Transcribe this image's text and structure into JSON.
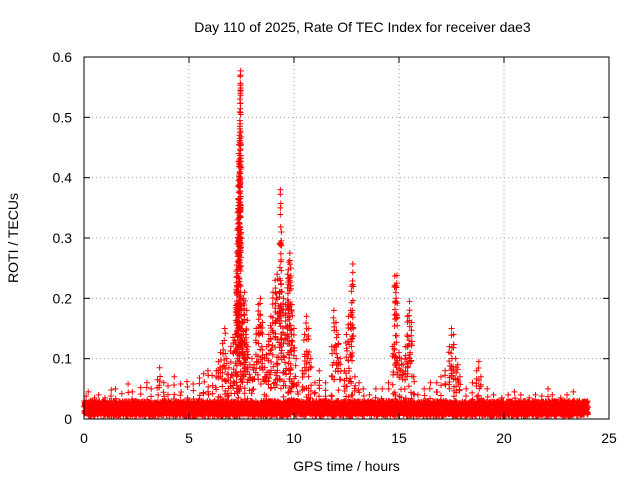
{
  "chart_data": {
    "type": "scatter",
    "title": "Day 110 of 2025, Rate Of TEC Index for receiver dae3",
    "xlabel": "GPS time / hours",
    "ylabel": "ROTI / TECUs",
    "xlim": [
      0,
      25
    ],
    "ylim": [
      0,
      0.6
    ],
    "xticks": [
      "0",
      "5",
      "10",
      "15",
      "20",
      "25"
    ],
    "yticks": [
      "0",
      "0.1",
      "0.2",
      "0.3",
      "0.4",
      "0.5",
      "0.6"
    ],
    "grid": true,
    "marker": "+",
    "color": "#ff0000",
    "background_band": {
      "x_range": [
        0,
        24
      ],
      "y_range": [
        0.005,
        0.03
      ],
      "note_points_per_hour": 60
    },
    "series": [
      {
        "points": [
          [
            0.05,
            0.025
          ],
          [
            0.1,
            0.038
          ],
          [
            0.2,
            0.045
          ],
          [
            0.3,
            0.03
          ],
          [
            0.5,
            0.035
          ],
          [
            0.7,
            0.04
          ],
          [
            1.0,
            0.035
          ],
          [
            1.3,
            0.048
          ],
          [
            1.5,
            0.05
          ],
          [
            1.8,
            0.042
          ],
          [
            2.1,
            0.058
          ],
          [
            2.3,
            0.045
          ],
          [
            2.7,
            0.052
          ],
          [
            3.0,
            0.06
          ],
          [
            3.2,
            0.05
          ],
          [
            3.5,
            0.065
          ],
          [
            3.6,
            0.085
          ],
          [
            3.8,
            0.06
          ],
          [
            4.0,
            0.055
          ],
          [
            4.3,
            0.07
          ],
          [
            4.6,
            0.058
          ],
          [
            4.9,
            0.062
          ],
          [
            5.2,
            0.058
          ],
          [
            5.5,
            0.068
          ],
          [
            5.7,
            0.075
          ],
          [
            5.9,
            0.08
          ],
          [
            6.1,
            0.072
          ],
          [
            6.3,
            0.08
          ],
          [
            6.4,
            0.095
          ],
          [
            6.5,
            0.11
          ],
          [
            6.6,
            0.125
          ],
          [
            6.7,
            0.15
          ],
          [
            6.8,
            0.1
          ],
          [
            6.9,
            0.085
          ],
          [
            7.0,
            0.12
          ],
          [
            7.1,
            0.135
          ],
          [
            7.2,
            0.14
          ],
          [
            7.25,
            0.21
          ],
          [
            7.28,
            0.255
          ],
          [
            7.3,
            0.29
          ],
          [
            7.32,
            0.33
          ],
          [
            7.34,
            0.365
          ],
          [
            7.36,
            0.395
          ],
          [
            7.38,
            0.44
          ],
          [
            7.4,
            0.47
          ],
          [
            7.42,
            0.485
          ],
          [
            7.44,
            0.54
          ],
          [
            7.45,
            0.57
          ],
          [
            7.46,
            0.577
          ],
          [
            7.5,
            0.19
          ],
          [
            7.55,
            0.16
          ],
          [
            7.6,
            0.2
          ],
          [
            7.65,
            0.21
          ],
          [
            7.7,
            0.14
          ],
          [
            7.75,
            0.18
          ],
          [
            7.8,
            0.12
          ],
          [
            7.9,
            0.09
          ],
          [
            8.0,
            0.1
          ],
          [
            8.1,
            0.09
          ],
          [
            8.2,
            0.15
          ],
          [
            8.3,
            0.19
          ],
          [
            8.4,
            0.2
          ],
          [
            8.5,
            0.16
          ],
          [
            8.6,
            0.1
          ],
          [
            8.7,
            0.12
          ],
          [
            8.8,
            0.14
          ],
          [
            8.9,
            0.17
          ],
          [
            9.0,
            0.21
          ],
          [
            9.1,
            0.23
          ],
          [
            9.2,
            0.24
          ],
          [
            9.3,
            0.21
          ],
          [
            9.35,
            0.38
          ],
          [
            9.4,
            0.31
          ],
          [
            9.5,
            0.2
          ],
          [
            9.6,
            0.19
          ],
          [
            9.7,
            0.24
          ],
          [
            9.75,
            0.26
          ],
          [
            9.8,
            0.275
          ],
          [
            9.85,
            0.25
          ],
          [
            9.9,
            0.19
          ],
          [
            10.0,
            0.15
          ],
          [
            10.1,
            0.1
          ],
          [
            10.2,
            0.06
          ],
          [
            10.4,
            0.08
          ],
          [
            10.5,
            0.14
          ],
          [
            10.6,
            0.17
          ],
          [
            10.7,
            0.15
          ],
          [
            10.8,
            0.1
          ],
          [
            11.0,
            0.06
          ],
          [
            11.2,
            0.08
          ],
          [
            11.5,
            0.06
          ],
          [
            11.8,
            0.12
          ],
          [
            11.9,
            0.18
          ],
          [
            12.0,
            0.16
          ],
          [
            12.1,
            0.14
          ],
          [
            12.2,
            0.1
          ],
          [
            12.4,
            0.08
          ],
          [
            12.5,
            0.14
          ],
          [
            12.6,
            0.17
          ],
          [
            12.7,
            0.18
          ],
          [
            12.75,
            0.22
          ],
          [
            12.8,
            0.257
          ],
          [
            12.9,
            0.07
          ],
          [
            13.1,
            0.06
          ],
          [
            13.3,
            0.05
          ],
          [
            13.6,
            0.04
          ],
          [
            13.9,
            0.05
          ],
          [
            14.2,
            0.05
          ],
          [
            14.5,
            0.06
          ],
          [
            14.7,
            0.12
          ],
          [
            14.8,
            0.237
          ],
          [
            14.85,
            0.22
          ],
          [
            14.9,
            0.238
          ],
          [
            15.0,
            0.11
          ],
          [
            15.1,
            0.1
          ],
          [
            15.2,
            0.09
          ],
          [
            15.3,
            0.12
          ],
          [
            15.4,
            0.17
          ],
          [
            15.5,
            0.195
          ],
          [
            15.6,
            0.16
          ],
          [
            15.7,
            0.07
          ],
          [
            15.9,
            0.04
          ],
          [
            16.2,
            0.05
          ],
          [
            16.5,
            0.06
          ],
          [
            16.8,
            0.06
          ],
          [
            17.0,
            0.07
          ],
          [
            17.2,
            0.08
          ],
          [
            17.4,
            0.12
          ],
          [
            17.5,
            0.15
          ],
          [
            17.6,
            0.14
          ],
          [
            17.7,
            0.1
          ],
          [
            17.8,
            0.09
          ],
          [
            17.9,
            0.07
          ],
          [
            18.2,
            0.05
          ],
          [
            18.5,
            0.06
          ],
          [
            18.7,
            0.08
          ],
          [
            18.8,
            0.095
          ],
          [
            18.9,
            0.07
          ],
          [
            19.2,
            0.05
          ],
          [
            19.5,
            0.04
          ],
          [
            19.9,
            0.035
          ],
          [
            20.2,
            0.04
          ],
          [
            20.5,
            0.045
          ],
          [
            20.8,
            0.04
          ],
          [
            21.2,
            0.035
          ],
          [
            21.5,
            0.04
          ],
          [
            21.8,
            0.038
          ],
          [
            22.1,
            0.05
          ],
          [
            22.3,
            0.04
          ],
          [
            22.7,
            0.035
          ],
          [
            23.0,
            0.04
          ],
          [
            23.3,
            0.045
          ],
          [
            23.6,
            0.03
          ],
          [
            23.9,
            0.028
          ],
          [
            24.0,
            0.02
          ]
        ]
      }
    ]
  }
}
